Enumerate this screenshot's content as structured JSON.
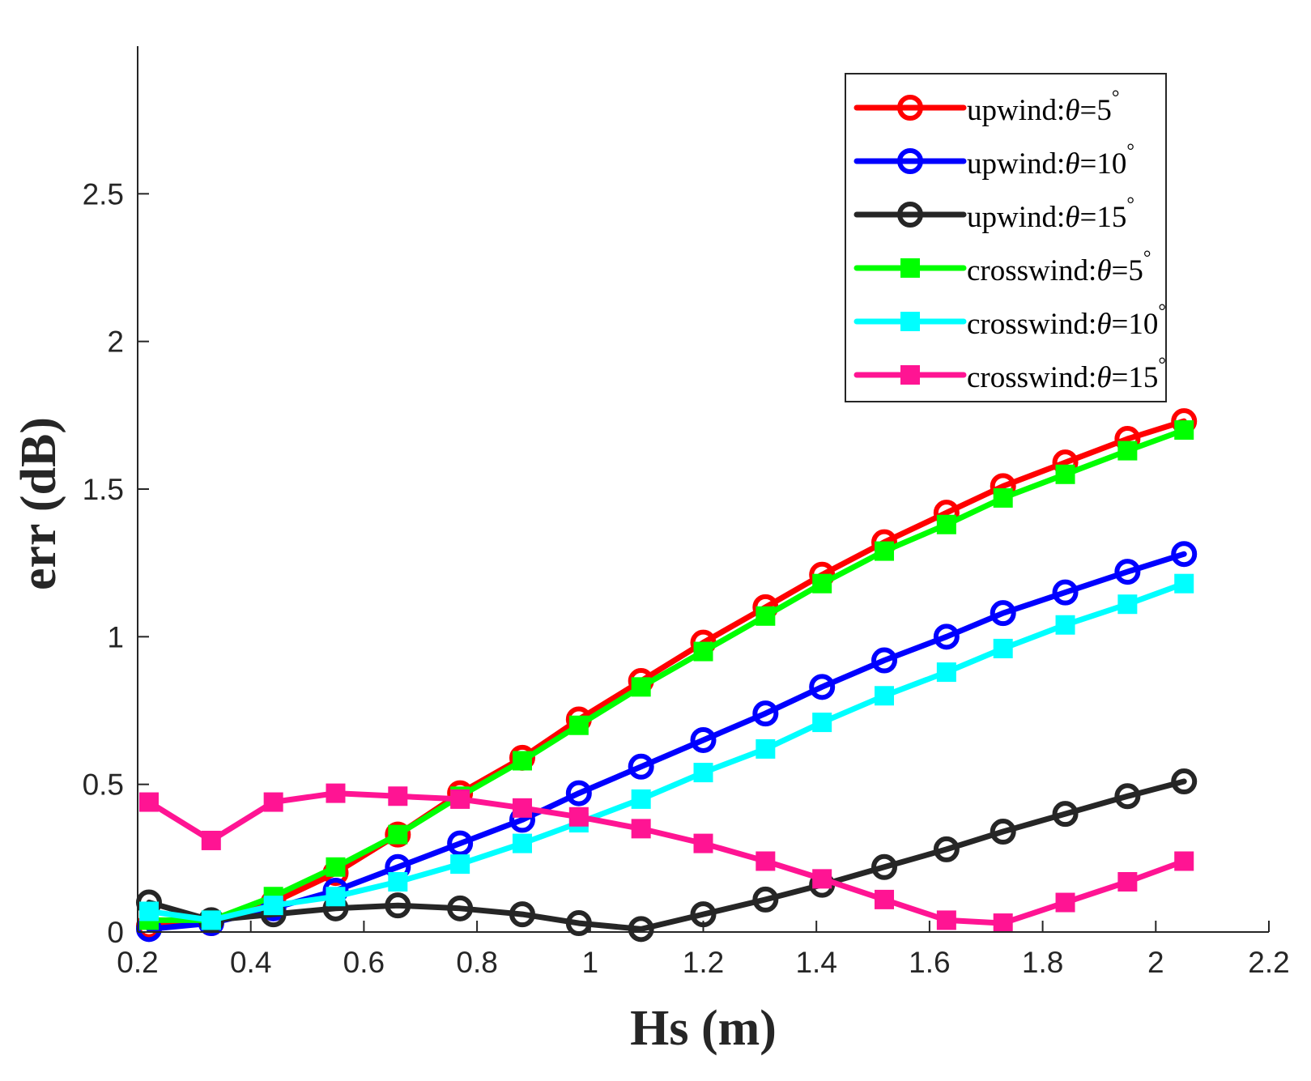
{
  "chart_data": {
    "type": "line",
    "title": "",
    "xlabel": "Hs (m)",
    "ylabel": "err (dB)",
    "xlim": [
      0.2,
      2.2
    ],
    "ylim": [
      0,
      3
    ],
    "xticks": [
      0.2,
      0.4,
      0.6,
      0.8,
      1,
      1.2,
      1.4,
      1.6,
      1.8,
      2,
      2.2
    ],
    "xtick_labels": [
      "0.2",
      "0.4",
      "0.6",
      "0.8",
      "1",
      "1.2",
      "1.4",
      "1.6",
      "1.8",
      "2",
      "2.2"
    ],
    "yticks": [
      0,
      0.5,
      1,
      1.5,
      2,
      2.5
    ],
    "ytick_labels": [
      "0",
      "0.5",
      "1",
      "1.5",
      "2",
      "2.5"
    ],
    "legend_position": "top-right",
    "x": [
      0.22,
      0.33,
      0.44,
      0.55,
      0.66,
      0.77,
      0.88,
      0.98,
      1.09,
      1.2,
      1.31,
      1.41,
      1.52,
      1.63,
      1.73,
      1.84,
      1.95,
      2.05
    ],
    "series": [
      {
        "name": "upwind:θ=5°",
        "label_prefix": "upwind:",
        "label_var": "θ",
        "label_suffix": "=5",
        "label_degree": "°",
        "color": "#ff0000",
        "marker": "circle",
        "values": [
          0.02,
          0.03,
          0.1,
          0.2,
          0.33,
          0.47,
          0.59,
          0.72,
          0.85,
          0.98,
          1.1,
          1.21,
          1.32,
          1.42,
          1.51,
          1.59,
          1.67,
          1.73
        ]
      },
      {
        "name": "upwind:θ=10°",
        "label_prefix": "upwind:",
        "label_var": "θ",
        "label_suffix": "=10",
        "label_degree": "°",
        "color": "#0000ff",
        "marker": "circle",
        "values": [
          0.01,
          0.03,
          0.08,
          0.14,
          0.22,
          0.3,
          0.38,
          0.47,
          0.56,
          0.65,
          0.74,
          0.83,
          0.92,
          1.0,
          1.08,
          1.15,
          1.22,
          1.28
        ]
      },
      {
        "name": "upwind:θ=15°",
        "label_prefix": "upwind:",
        "label_var": "θ",
        "label_suffix": "=15",
        "label_degree": "°",
        "color": "#262626",
        "marker": "circle",
        "values": [
          0.1,
          0.04,
          0.06,
          0.08,
          0.09,
          0.08,
          0.06,
          0.03,
          0.01,
          0.06,
          0.11,
          0.16,
          0.22,
          0.28,
          0.34,
          0.4,
          0.46,
          0.51
        ]
      },
      {
        "name": "crosswind:θ=5°",
        "label_prefix": "crosswind:",
        "label_var": "θ",
        "label_suffix": "=5",
        "label_degree": "°",
        "color": "#00ff00",
        "marker": "square",
        "values": [
          0.04,
          0.04,
          0.12,
          0.22,
          0.33,
          0.46,
          0.58,
          0.7,
          0.83,
          0.95,
          1.07,
          1.18,
          1.29,
          1.38,
          1.47,
          1.55,
          1.63,
          1.7
        ]
      },
      {
        "name": "crosswind:θ=10°",
        "label_prefix": "crosswind:",
        "label_var": "θ",
        "label_suffix": "=10",
        "label_degree": "°",
        "color": "#00ffff",
        "marker": "square",
        "values": [
          0.07,
          0.04,
          0.09,
          0.12,
          0.17,
          0.23,
          0.3,
          0.37,
          0.45,
          0.54,
          0.62,
          0.71,
          0.8,
          0.88,
          0.96,
          1.04,
          1.11,
          1.18
        ]
      },
      {
        "name": "crosswind:θ=15°",
        "label_prefix": "crosswind:",
        "label_var": "θ",
        "label_suffix": "=15",
        "label_degree": "°",
        "color": "#ff1493",
        "marker": "square",
        "values": [
          0.44,
          0.31,
          0.44,
          0.47,
          0.46,
          0.45,
          0.42,
          0.39,
          0.35,
          0.3,
          0.24,
          0.18,
          0.11,
          0.04,
          0.03,
          0.1,
          0.17,
          0.24
        ]
      }
    ]
  }
}
